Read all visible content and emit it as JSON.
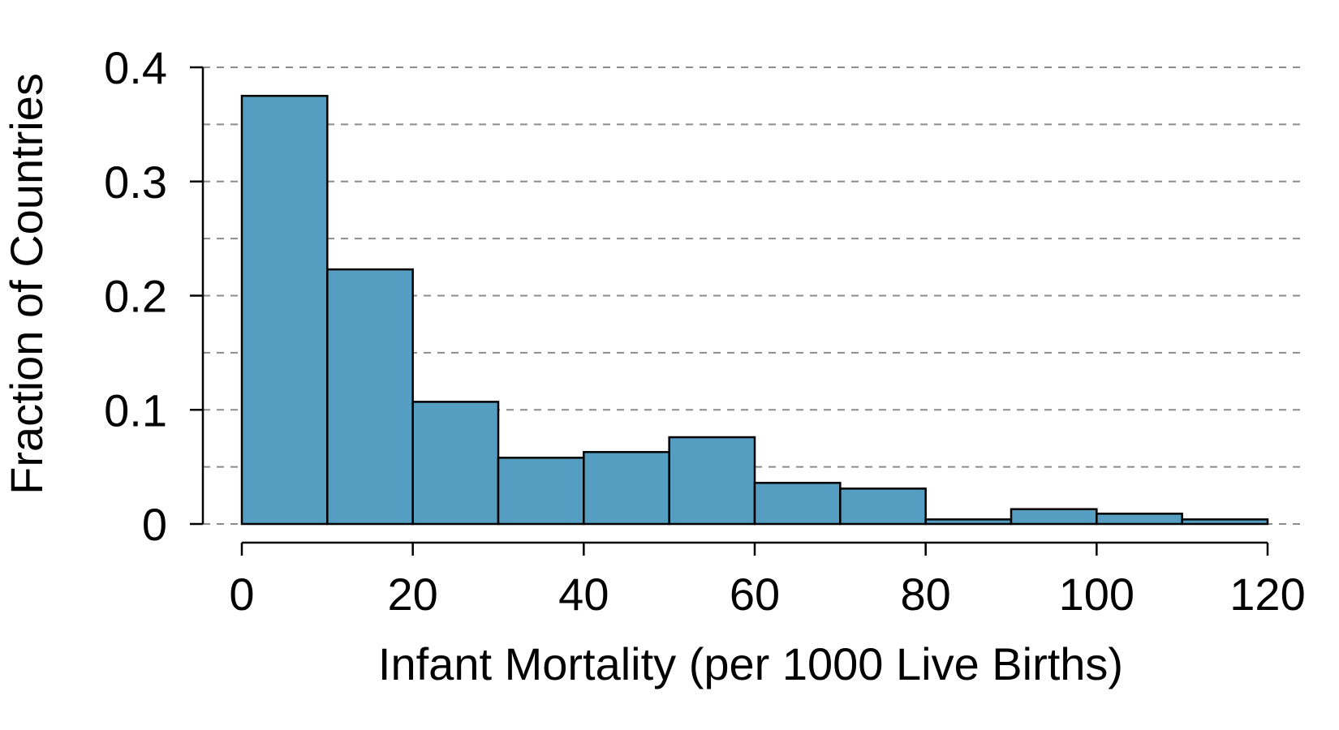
{
  "chart_data": {
    "type": "bar",
    "title": "",
    "xlabel": "Infant Mortality (per 1000 Live Births)",
    "ylabel": "Fraction of Countries",
    "bin_edges": [
      0,
      10,
      20,
      30,
      40,
      50,
      60,
      70,
      80,
      90,
      100,
      110,
      120
    ],
    "values": [
      0.375,
      0.223,
      0.107,
      0.058,
      0.063,
      0.076,
      0.036,
      0.031,
      0.004,
      0.013,
      0.009,
      0.004
    ],
    "xlim": [
      0,
      120
    ],
    "ylim": [
      0,
      0.4
    ],
    "x_ticks": [
      0,
      20,
      40,
      60,
      80,
      100,
      120
    ],
    "x_tick_labels": [
      "0",
      "20",
      "40",
      "60",
      "80",
      "100",
      "120"
    ],
    "y_ticks": [
      0,
      0.1,
      0.2,
      0.3,
      0.4
    ],
    "y_tick_labels": [
      "0",
      "0.1",
      "0.2",
      "0.3",
      "0.4"
    ],
    "grid": "horizontal dashed",
    "grid_step": 0.05,
    "legend": "none",
    "colors": {
      "bar_fill": "#569EC1",
      "bar_stroke": "#000000",
      "grid": "#8C8C8C",
      "axis": "#000000"
    }
  }
}
